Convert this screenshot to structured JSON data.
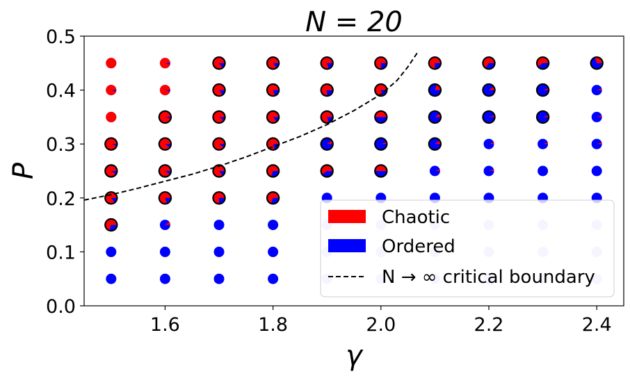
{
  "chart_data": {
    "type": "scatter",
    "title": "N = 20",
    "xlabel": "γ",
    "ylabel": "P",
    "xlim": [
      1.45,
      2.45
    ],
    "ylim": [
      0.0,
      0.5
    ],
    "xticks": [
      1.6,
      1.8,
      2.0,
      2.2,
      2.4
    ],
    "xtick_labels": [
      "1.6",
      "1.8",
      "2.0",
      "2.2",
      "2.4"
    ],
    "yticks": [
      0.0,
      0.1,
      0.2,
      0.3,
      0.4,
      0.5
    ],
    "ytick_labels": [
      "0.0",
      "0.1",
      "0.2",
      "0.3",
      "0.4",
      "0.5"
    ],
    "grid": false,
    "legend_position": "lower-right",
    "legend": {
      "chaotic_label": "Chaotic",
      "ordered_label": "Ordered",
      "boundary_label": "N → ∞ critical boundary"
    },
    "colors": {
      "chaotic": "#ff0000",
      "ordered": "#0000ff",
      "faded": "#ccccff",
      "ring": "#000000"
    },
    "gamma_values": [
      1.5,
      1.6,
      1.7,
      1.8,
      1.9,
      2.0,
      2.1,
      2.2,
      2.3,
      2.4
    ],
    "p_values": [
      0.05,
      0.1,
      0.15,
      0.2,
      0.25,
      0.3,
      0.35,
      0.4,
      0.45
    ],
    "chaotic_fraction": [
      [
        0.0,
        0.0,
        0.0,
        0.0,
        0.0,
        0.0,
        0.0,
        0.0,
        0.0,
        0.0
      ],
      [
        0.0,
        0.0,
        0.0,
        0.0,
        0.0,
        0.0,
        0.0,
        0.0,
        0.0,
        0.0
      ],
      [
        0.7,
        0.1,
        0.0,
        0.0,
        0.0,
        0.0,
        0.0,
        0.0,
        0.0,
        0.0
      ],
      [
        0.85,
        0.8,
        0.75,
        0.7,
        0.0,
        0.0,
        0.0,
        0.0,
        0.0,
        0.0
      ],
      [
        0.9,
        0.9,
        0.85,
        0.7,
        0.6,
        0.5,
        0.05,
        0.05,
        0.0,
        0.0
      ],
      [
        0.95,
        0.9,
        0.9,
        0.8,
        0.1,
        0.05,
        0.1,
        0.05,
        0.05,
        0.05
      ],
      [
        1.0,
        0.95,
        0.9,
        0.85,
        0.8,
        0.5,
        0.1,
        0.05,
        0.05,
        0.05
      ],
      [
        0.95,
        0.95,
        0.85,
        0.8,
        0.75,
        0.8,
        0.2,
        0.1,
        0.05,
        0.05
      ],
      [
        1.0,
        0.95,
        0.85,
        0.85,
        0.8,
        0.75,
        0.75,
        0.65,
        0.6,
        0.3
      ]
    ],
    "ringed": [
      [
        false,
        false,
        false,
        false,
        false,
        false,
        false,
        false,
        false,
        false
      ],
      [
        false,
        false,
        false,
        false,
        false,
        false,
        false,
        false,
        false,
        false
      ],
      [
        true,
        false,
        false,
        false,
        false,
        false,
        false,
        false,
        false,
        false
      ],
      [
        true,
        true,
        true,
        true,
        false,
        false,
        false,
        false,
        false,
        false
      ],
      [
        true,
        true,
        true,
        true,
        true,
        true,
        false,
        false,
        false,
        false
      ],
      [
        true,
        true,
        true,
        true,
        true,
        true,
        true,
        false,
        false,
        false
      ],
      [
        false,
        true,
        true,
        true,
        true,
        true,
        true,
        true,
        true,
        false
      ],
      [
        false,
        false,
        true,
        true,
        true,
        true,
        true,
        true,
        true,
        false
      ],
      [
        false,
        false,
        true,
        true,
        true,
        true,
        true,
        true,
        true,
        true
      ]
    ],
    "faded": [
      [
        false,
        false,
        false,
        false,
        true,
        true,
        true,
        true,
        true,
        true
      ],
      [
        false,
        false,
        false,
        false,
        true,
        true,
        true,
        true,
        true,
        true
      ],
      [
        false,
        false,
        false,
        false,
        true,
        true,
        true,
        true,
        true,
        true
      ],
      [
        false,
        false,
        false,
        false,
        false,
        false,
        false,
        false,
        false,
        false
      ],
      [
        false,
        false,
        false,
        false,
        false,
        false,
        false,
        false,
        false,
        false
      ],
      [
        false,
        false,
        false,
        false,
        false,
        false,
        false,
        false,
        false,
        false
      ],
      [
        false,
        false,
        false,
        false,
        false,
        false,
        false,
        false,
        false,
        false
      ],
      [
        false,
        false,
        false,
        false,
        false,
        false,
        false,
        false,
        false,
        false
      ],
      [
        false,
        false,
        false,
        false,
        false,
        false,
        false,
        false,
        false,
        false
      ]
    ],
    "boundary_curve": {
      "gamma": [
        1.45,
        1.5,
        1.55,
        1.6,
        1.65,
        1.7,
        1.75,
        1.8,
        1.85,
        1.9,
        1.95,
        2.0,
        2.03,
        2.05,
        2.07
      ],
      "P": [
        0.196,
        0.206,
        0.218,
        0.231,
        0.244,
        0.259,
        0.276,
        0.295,
        0.314,
        0.336,
        0.362,
        0.392,
        0.418,
        0.443,
        0.473
      ]
    }
  }
}
